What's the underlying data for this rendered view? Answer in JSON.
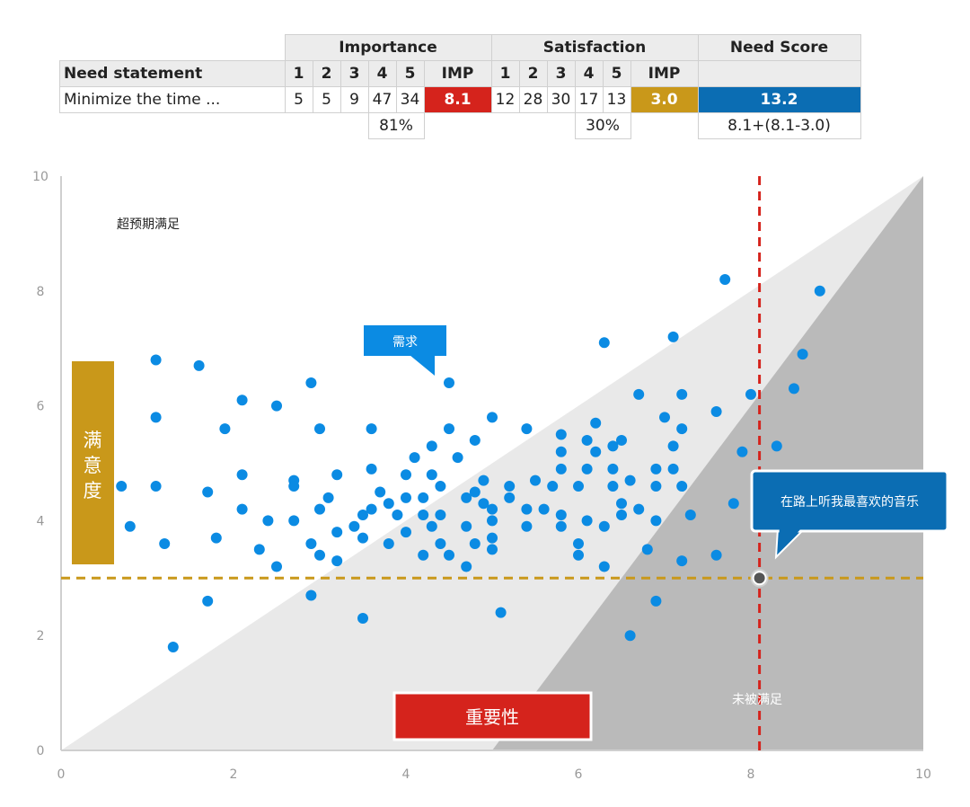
{
  "table": {
    "group_headers": [
      "Importance",
      "Satisfaction",
      "Need Score"
    ],
    "col_header_label": "Need statement",
    "importance_cols": [
      "1",
      "2",
      "3",
      "4",
      "5",
      "IMP"
    ],
    "satisfaction_cols": [
      "1",
      "2",
      "3",
      "4",
      "5",
      "IMP"
    ],
    "row": {
      "statement": "Minimize the time ...",
      "importance": [
        "5",
        "5",
        "9",
        "47",
        "34"
      ],
      "imp": "8.1",
      "satisfaction": [
        "12",
        "28",
        "30",
        "17",
        "13"
      ],
      "sat_imp": "3.0",
      "need_score": "13.2"
    },
    "importance_top2": "81%",
    "satisfaction_top2": "30%",
    "formula": "8.1+(8.1-3.0)"
  },
  "labels": {
    "over_satisfied": "超预期满足",
    "need_callout": "需求",
    "satisfaction_axis": "满意度",
    "importance_axis": "重要性",
    "underserved": "未被满足",
    "highlight_callout": "在路上听我最喜欢的音乐"
  },
  "colors": {
    "importance_red": "#d5231c",
    "satisfaction_gold": "#c9981a",
    "need_blue": "#0b6db3",
    "point_blue": "#0b8be3"
  },
  "chart_data": {
    "type": "scatter",
    "xlim": [
      0,
      10
    ],
    "ylim": [
      0,
      10
    ],
    "xticks": [
      0,
      2,
      4,
      6,
      8,
      10
    ],
    "yticks": [
      0,
      2,
      4,
      6,
      8,
      10
    ],
    "reference_lines": {
      "x": 8.1,
      "y": 3.0
    },
    "highlight_point": [
      8.1,
      3.0
    ],
    "points": [
      [
        0.7,
        4.6
      ],
      [
        0.8,
        3.9
      ],
      [
        1.1,
        6.8
      ],
      [
        1.1,
        5.8
      ],
      [
        1.1,
        4.6
      ],
      [
        1.2,
        3.6
      ],
      [
        1.3,
        1.8
      ],
      [
        1.6,
        6.7
      ],
      [
        1.7,
        4.5
      ],
      [
        1.7,
        2.6
      ],
      [
        1.8,
        3.7
      ],
      [
        1.9,
        5.6
      ],
      [
        2.1,
        4.8
      ],
      [
        2.1,
        6.1
      ],
      [
        2.1,
        4.2
      ],
      [
        2.3,
        3.5
      ],
      [
        2.4,
        4.0
      ],
      [
        2.5,
        6.0
      ],
      [
        2.5,
        3.2
      ],
      [
        2.7,
        4.0
      ],
      [
        2.7,
        4.7
      ],
      [
        2.7,
        4.6
      ],
      [
        2.9,
        3.6
      ],
      [
        2.9,
        6.4
      ],
      [
        2.9,
        2.7
      ],
      [
        3.0,
        5.6
      ],
      [
        3.0,
        4.2
      ],
      [
        3.0,
        3.4
      ],
      [
        3.1,
        4.4
      ],
      [
        3.2,
        3.8
      ],
      [
        3.2,
        4.8
      ],
      [
        3.2,
        3.3
      ],
      [
        3.4,
        3.9
      ],
      [
        3.5,
        3.7
      ],
      [
        3.5,
        4.1
      ],
      [
        3.5,
        2.3
      ],
      [
        3.6,
        5.6
      ],
      [
        3.6,
        4.2
      ],
      [
        3.6,
        4.9
      ],
      [
        3.7,
        4.5
      ],
      [
        3.8,
        4.3
      ],
      [
        3.8,
        3.6
      ],
      [
        3.9,
        4.1
      ],
      [
        4.0,
        3.8
      ],
      [
        4.0,
        4.8
      ],
      [
        4.0,
        4.4
      ],
      [
        4.1,
        5.1
      ],
      [
        4.2,
        3.4
      ],
      [
        4.2,
        4.4
      ],
      [
        4.2,
        4.1
      ],
      [
        4.3,
        5.3
      ],
      [
        4.3,
        4.8
      ],
      [
        4.3,
        3.9
      ],
      [
        4.4,
        4.6
      ],
      [
        4.4,
        4.1
      ],
      [
        4.4,
        3.6
      ],
      [
        4.5,
        6.4
      ],
      [
        4.5,
        5.6
      ],
      [
        4.5,
        3.4
      ],
      [
        4.6,
        5.1
      ],
      [
        4.7,
        4.4
      ],
      [
        4.7,
        3.2
      ],
      [
        4.7,
        3.9
      ],
      [
        4.8,
        5.4
      ],
      [
        4.8,
        4.5
      ],
      [
        4.8,
        3.6
      ],
      [
        4.9,
        4.3
      ],
      [
        4.9,
        4.7
      ],
      [
        5.0,
        5.8
      ],
      [
        5.0,
        4.2
      ],
      [
        5.0,
        4.0
      ],
      [
        5.0,
        3.5
      ],
      [
        5.0,
        3.7
      ],
      [
        5.1,
        2.4
      ],
      [
        5.2,
        4.6
      ],
      [
        5.2,
        4.4
      ],
      [
        5.4,
        4.2
      ],
      [
        5.4,
        5.6
      ],
      [
        5.4,
        3.9
      ],
      [
        5.5,
        4.7
      ],
      [
        5.6,
        4.2
      ],
      [
        5.7,
        4.6
      ],
      [
        5.8,
        5.5
      ],
      [
        5.8,
        5.2
      ],
      [
        5.8,
        4.9
      ],
      [
        5.8,
        4.1
      ],
      [
        5.8,
        3.9
      ],
      [
        6.0,
        4.6
      ],
      [
        6.0,
        3.4
      ],
      [
        6.0,
        3.6
      ],
      [
        6.1,
        5.4
      ],
      [
        6.1,
        4.9
      ],
      [
        6.1,
        4.0
      ],
      [
        6.2,
        5.2
      ],
      [
        6.2,
        5.7
      ],
      [
        6.3,
        7.1
      ],
      [
        6.3,
        3.9
      ],
      [
        6.3,
        3.2
      ],
      [
        6.4,
        5.3
      ],
      [
        6.4,
        4.9
      ],
      [
        6.4,
        4.6
      ],
      [
        6.5,
        5.4
      ],
      [
        6.5,
        4.3
      ],
      [
        6.5,
        4.1
      ],
      [
        6.6,
        4.7
      ],
      [
        6.6,
        2.0
      ],
      [
        6.7,
        6.2
      ],
      [
        6.7,
        4.2
      ],
      [
        6.8,
        3.5
      ],
      [
        6.9,
        2.6
      ],
      [
        6.9,
        4.9
      ],
      [
        6.9,
        4.6
      ],
      [
        6.9,
        4.0
      ],
      [
        7.0,
        5.8
      ],
      [
        7.1,
        7.2
      ],
      [
        7.1,
        5.3
      ],
      [
        7.1,
        4.9
      ],
      [
        7.2,
        6.2
      ],
      [
        7.2,
        5.6
      ],
      [
        7.2,
        4.6
      ],
      [
        7.2,
        3.3
      ],
      [
        7.3,
        4.1
      ],
      [
        7.6,
        5.9
      ],
      [
        7.6,
        3.4
      ],
      [
        7.7,
        8.2
      ],
      [
        7.8,
        4.3
      ],
      [
        7.9,
        5.2
      ],
      [
        8.0,
        6.2
      ],
      [
        8.3,
        5.3
      ],
      [
        8.5,
        6.3
      ],
      [
        8.6,
        6.9
      ],
      [
        8.8,
        8.0
      ]
    ]
  }
}
